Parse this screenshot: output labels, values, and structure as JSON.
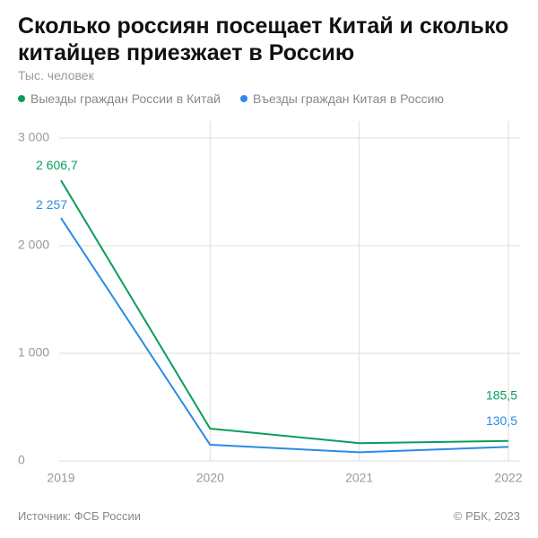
{
  "chart_data": {
    "type": "line",
    "title": "Сколько россиян посещает Китай и сколько китайцев приезжает в Россию",
    "subtitle": "Тыс. человек",
    "categories": [
      "2019",
      "2020",
      "2021",
      "2022"
    ],
    "series": [
      {
        "name": "Выезды граждан России в Китай",
        "color": "#0a9d5c",
        "values": [
          2606.7,
          300,
          165,
          185.5
        ],
        "value_labels": [
          "2 606,7",
          null,
          null,
          "185,5"
        ]
      },
      {
        "name": "Въезды граждан Китая в Россию",
        "color": "#2b8ae6",
        "values": [
          2257,
          150,
          80,
          130.5
        ],
        "value_labels": [
          "2 257",
          null,
          null,
          "130,5"
        ]
      }
    ],
    "ylim": [
      0,
      3000
    ],
    "yticks": [
      0,
      {
        "value": 1000,
        "label": "1 000"
      },
      {
        "value": 2000,
        "label": "2 000"
      },
      {
        "value": 3000,
        "label": "3 000"
      }
    ],
    "grid": true,
    "source": "Источник: ФСБ России",
    "credit": "© РБК, 2023"
  }
}
